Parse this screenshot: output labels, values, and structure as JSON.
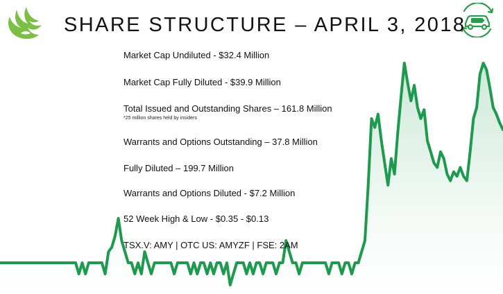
{
  "title": "SHARE STRUCTURE – APRIL 3, 2018",
  "logo": {
    "icon": "phoenix-logo",
    "color": "#7bbf44"
  },
  "corner_icon": {
    "icon": "electric-car-recycle-icon",
    "color": "#2a9b4a"
  },
  "facts": [
    {
      "label": "Market Cap Undiluted - $32.4 Million"
    },
    {
      "label": "Market Cap Fully Diluted - $39.9 Million"
    },
    {
      "label": "Total Issued and Outstanding Shares – 161.8 Million",
      "note": "*25 million shares held by insiders"
    },
    {
      "label": "Warrants and Options Outstanding – 37.8 Million"
    },
    {
      "label": "Fully Diluted – 199.7 Million"
    },
    {
      "label": "Warrants and Options Diluted - $7.2 Million"
    },
    {
      "label": "52 Week High & Low - $0.35 - $0.13"
    },
    {
      "label": "TSX.V: AMY | OTC US: AMYZF | FSE: 2AM"
    }
  ],
  "chart_data": {
    "type": "area",
    "color": "#1e9a4e",
    "title": "",
    "xlabel": "",
    "ylabel": "",
    "ylim": [
      0,
      100
    ],
    "values": [
      5,
      5,
      5,
      5,
      5,
      5,
      5,
      5,
      5,
      5,
      5,
      5,
      5,
      5,
      5,
      5,
      5,
      5,
      5,
      5,
      5,
      5,
      5,
      5,
      0,
      5,
      0,
      5,
      5,
      5,
      5,
      5,
      0,
      10,
      12,
      17,
      25,
      15,
      10,
      5,
      5,
      0,
      5,
      0,
      10,
      5,
      0,
      5,
      5,
      5,
      5,
      5,
      5,
      0,
      5,
      5,
      5,
      5,
      0,
      5,
      0,
      5,
      5,
      0,
      5,
      0,
      5,
      5,
      0,
      5,
      -5,
      0,
      5,
      5,
      5,
      0,
      5,
      0,
      5,
      5,
      0,
      5,
      5,
      5,
      0,
      5,
      5,
      15,
      10,
      5,
      5,
      0,
      5,
      5,
      5,
      5,
      5,
      5,
      5,
      5,
      0,
      5,
      5,
      5,
      0,
      5,
      5,
      0,
      5,
      5,
      10,
      15,
      40,
      70,
      66,
      72,
      60,
      50,
      40,
      52,
      45,
      64,
      80,
      95,
      86,
      78,
      85,
      75,
      70,
      74,
      60,
      55,
      50,
      48,
      55,
      52,
      45,
      42,
      46,
      44,
      48,
      44,
      42,
      55,
      70,
      75,
      90,
      95,
      92,
      84,
      75,
      72,
      68,
      65
    ]
  }
}
